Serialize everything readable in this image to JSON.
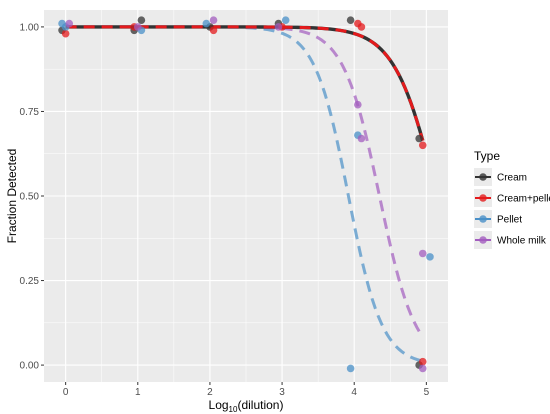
{
  "chart_data": {
    "type": "scatter",
    "title": "",
    "xlabel_base": "Log",
    "xlabel_sub": "10",
    "xlabel_rest": "(dilution)",
    "ylabel": "Fraction Detected",
    "xlim": [
      -0.3,
      5.3
    ],
    "ylim": [
      -0.05,
      1.05
    ],
    "x_ticks": [
      0,
      1,
      2,
      3,
      4,
      5
    ],
    "y_ticks": [
      0.0,
      0.25,
      0.5,
      0.75,
      1.0
    ],
    "y_tick_labels": [
      "0.00",
      "0.25",
      "0.50",
      "0.75",
      "1.00"
    ],
    "grid": true,
    "legend": {
      "title": "Type",
      "position": "right",
      "entries": [
        "Cream",
        "Cream+pellet",
        "Pellet",
        "Whole milk"
      ]
    },
    "colors": {
      "Cream": "#333333",
      "Cream+pellet": "#e41a1c",
      "Pellet": "#4a90c8",
      "Whole milk": "#a35dbf",
      "panel": "#ebebeb",
      "grid": "#ffffff"
    },
    "series": [
      {
        "name": "Cream",
        "curve": {
          "style": "solid",
          "midpoint": 5.15,
          "slope": 3.4,
          "x_end": 4.95
        },
        "points": [
          [
            -0.05,
            0.99
          ],
          [
            0.95,
            0.99
          ],
          [
            1.05,
            1.02
          ],
          [
            2.0,
            1.0
          ],
          [
            2.95,
            1.01
          ],
          [
            3.95,
            1.02
          ],
          [
            4.9,
            0.67
          ],
          [
            4.9,
            0.0
          ]
        ]
      },
      {
        "name": "Cream+pellet",
        "curve": {
          "style": "dashed",
          "midpoint": 5.15,
          "slope": 3.4,
          "x_end": 4.95
        },
        "points": [
          [
            0.0,
            0.98
          ],
          [
            0.95,
            1.0
          ],
          [
            2.05,
            0.99
          ],
          [
            3.0,
            1.0
          ],
          [
            4.05,
            1.01
          ],
          [
            4.1,
            1.0
          ],
          [
            4.95,
            0.65
          ],
          [
            4.95,
            0.01
          ]
        ]
      },
      {
        "name": "Pellet",
        "curve": {
          "style": "dashed",
          "midpoint": 3.92,
          "slope": 4.3,
          "x_end": 4.95
        },
        "points": [
          [
            -0.05,
            1.01
          ],
          [
            0.0,
            1.0
          ],
          [
            1.05,
            0.99
          ],
          [
            1.95,
            1.01
          ],
          [
            3.05,
            1.02
          ],
          [
            3.95,
            -0.01
          ],
          [
            4.05,
            0.68
          ],
          [
            5.05,
            0.32
          ]
        ]
      },
      {
        "name": "Whole milk",
        "curve": {
          "style": "dashed",
          "midpoint": 4.35,
          "slope": 4.0,
          "x_end": 4.95
        },
        "points": [
          [
            0.05,
            1.01
          ],
          [
            1.0,
            1.0
          ],
          [
            2.05,
            1.02
          ],
          [
            2.95,
            1.0
          ],
          [
            4.05,
            0.77
          ],
          [
            4.1,
            0.67
          ],
          [
            4.95,
            0.33
          ],
          [
            4.95,
            -0.01
          ]
        ]
      }
    ]
  }
}
